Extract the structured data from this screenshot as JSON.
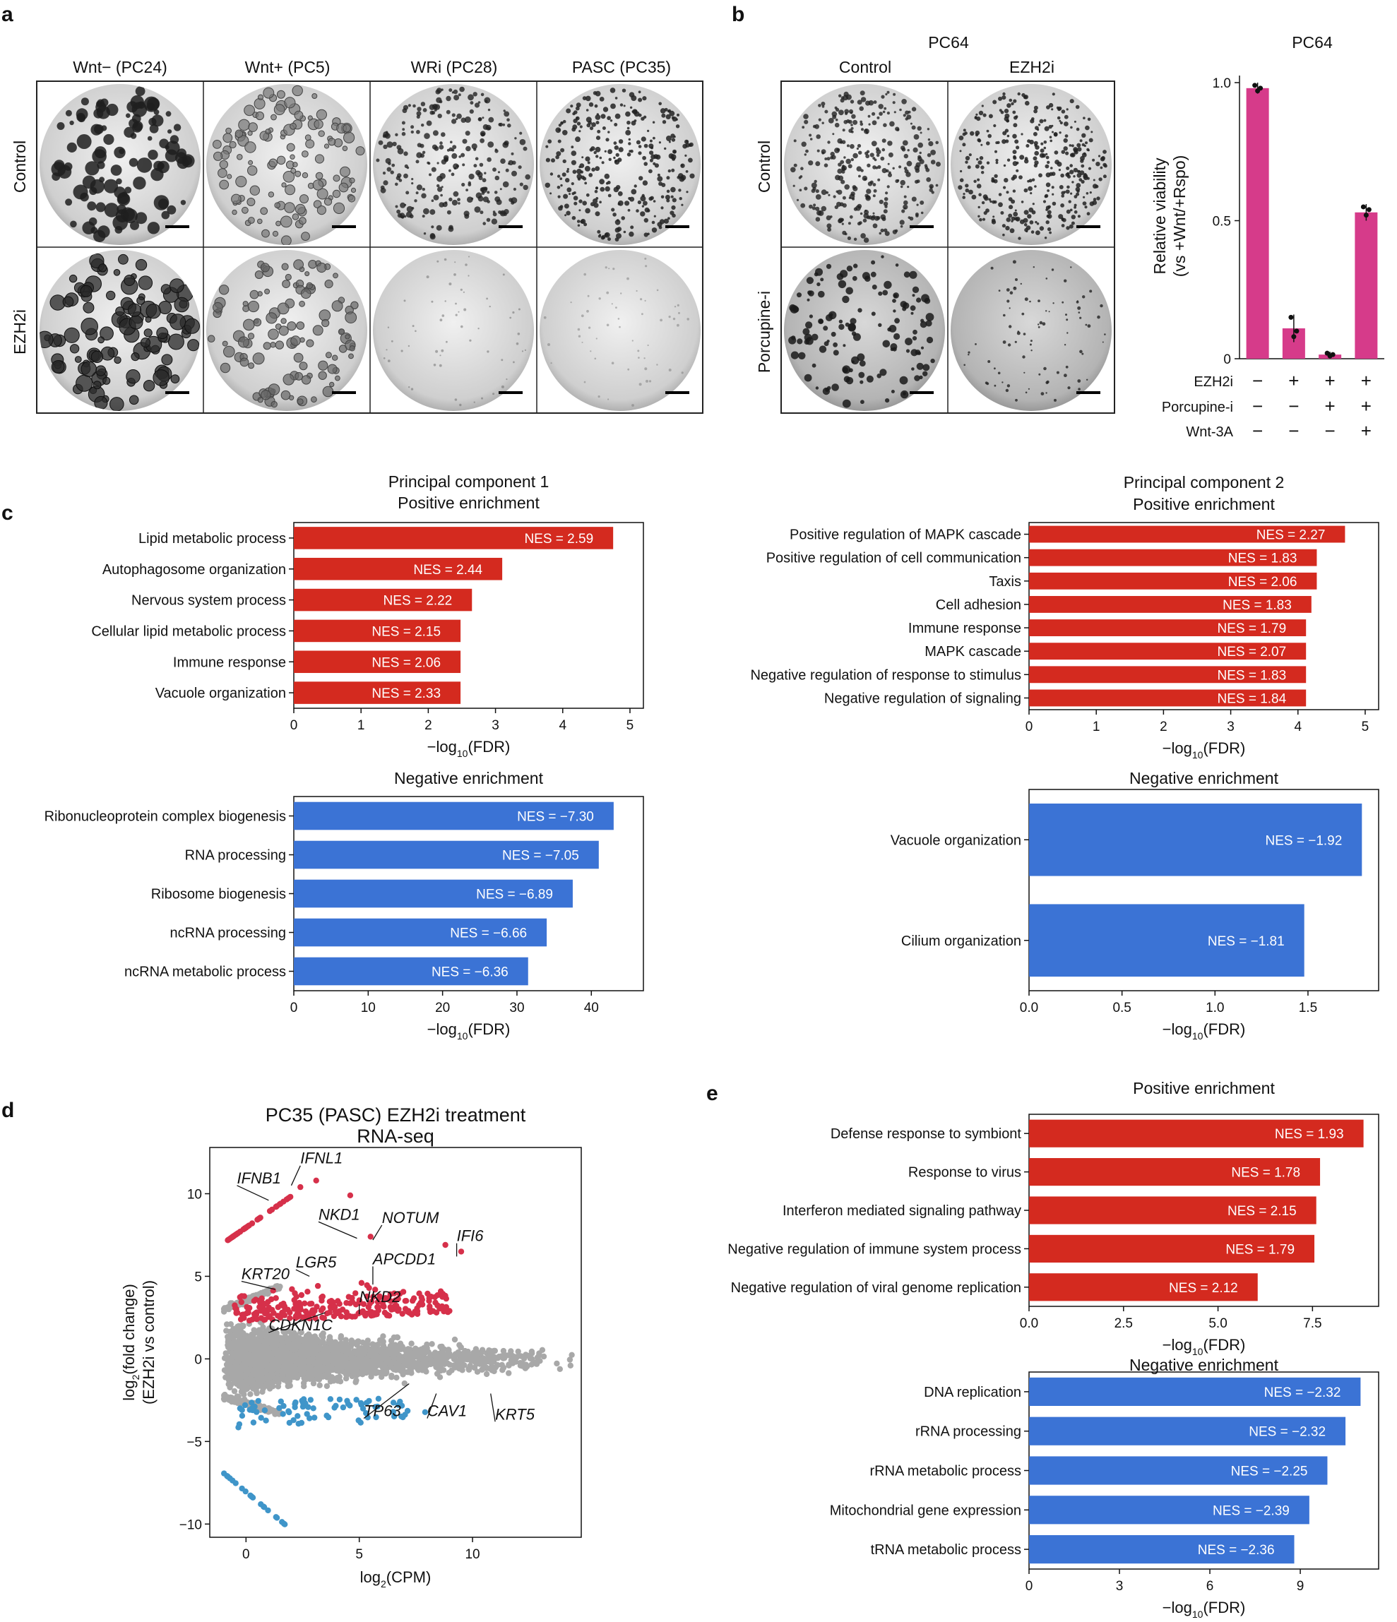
{
  "panel_letters": {
    "a": "a",
    "b": "b",
    "c": "c",
    "d": "d",
    "e": "e"
  },
  "colors": {
    "red": "#d42a1f",
    "blue": "#3b73d5",
    "pink": "#d63b8a",
    "up_dot": "#d6304a",
    "down_dot": "#3f95c9",
    "grey_dot": "#a8a8a8"
  },
  "panel_a": {
    "columns": [
      "Wnt− (PC24)",
      "Wnt+ (PC5)",
      "WRi (PC28)",
      "PASC (PC35)"
    ],
    "rows": [
      "Control",
      "EZH2i"
    ]
  },
  "panel_b": {
    "header": "PC64",
    "columns": [
      "Control",
      "EZH2i"
    ],
    "rows": [
      "Control",
      "Porcupine-i"
    ]
  },
  "chart_data": [
    {
      "id": "b_viability",
      "type": "bar",
      "title": "PC64",
      "ylabel_line1": "Relative viability",
      "ylabel_line2": "(vs +Wnt/+Rspo)",
      "ylim": [
        0,
        1.0
      ],
      "yticks": [
        0,
        0.5,
        1.0
      ],
      "ytick_labels": [
        "0",
        "0.5",
        "1.0"
      ],
      "values": [
        0.98,
        0.11,
        0.015,
        0.53
      ],
      "errors": [
        0.02,
        0.05,
        0.01,
        0.03
      ],
      "points": [
        [
          0.99,
          0.97,
          0.98
        ],
        [
          0.15,
          0.08,
          0.1
        ],
        [
          0.02,
          0.01,
          0.015
        ],
        [
          0.55,
          0.52,
          0.54
        ]
      ],
      "conditions": {
        "labels": [
          "EZH2i",
          "Porcupine-i",
          "Wnt-3A"
        ],
        "symbols": [
          [
            "−",
            "+",
            "+",
            "+"
          ],
          [
            "−",
            "−",
            "+",
            "+"
          ],
          [
            "−",
            "−",
            "−",
            "+"
          ]
        ]
      }
    },
    {
      "id": "c_pc1_pos",
      "type": "bar",
      "orientation": "horizontal",
      "heading_line1": "Principal component 1",
      "heading_line2": "Positive enrichment",
      "categories": [
        "Lipid metabolic process",
        "Autophagosome organization",
        "Nervous system process",
        "Cellular lipid metabolic process",
        "Immune response",
        "Vacuole organization"
      ],
      "values": [
        4.75,
        3.1,
        2.65,
        2.48,
        2.48,
        2.48
      ],
      "nes": [
        "NES =  2.59",
        "NES =  2.44",
        "NES =  2.22",
        "NES =  2.15",
        "NES =  2.06",
        "NES =  2.33"
      ],
      "xlim": [
        0,
        5.2
      ],
      "xticks": [
        0,
        1,
        2,
        3,
        4,
        5
      ],
      "xlabel_main": "−log",
      "xlabel_sub": "10",
      "xlabel_tail": "(FDR)"
    },
    {
      "id": "c_pc2_pos",
      "type": "bar",
      "orientation": "horizontal",
      "heading_line1": "Principal component 2",
      "heading_line2": "Positive enrichment",
      "categories": [
        "Positive regulation of MAPK cascade",
        "Positive regulation of cell communication",
        "Taxis",
        "Cell adhesion",
        "Immune response",
        "MAPK cascade",
        "Negative regulation of response to stimulus",
        "Negative regulation of signaling"
      ],
      "values": [
        4.7,
        4.28,
        4.28,
        4.2,
        4.12,
        4.12,
        4.12,
        4.12
      ],
      "nes": [
        "NES =  2.27",
        "NES =  1.83",
        "NES =  2.06",
        "NES =  1.83",
        "NES =  1.79",
        "NES =  2.07",
        "NES =  1.83",
        "NES =  1.84"
      ],
      "xlim": [
        0,
        5.2
      ],
      "xticks": [
        0,
        1,
        2,
        3,
        4,
        5
      ],
      "xlabel_main": "−log",
      "xlabel_sub": "10",
      "xlabel_tail": "(FDR)"
    },
    {
      "id": "c_pc1_neg",
      "type": "bar",
      "orientation": "horizontal",
      "heading_line1": "Negative enrichment",
      "categories": [
        "Ribonucleoprotein complex biogenesis",
        "RNA processing",
        "Ribosome biogenesis",
        "ncRNA processing",
        "ncRNA metabolic process"
      ],
      "values": [
        43,
        41,
        37.5,
        34,
        31.5
      ],
      "nes": [
        "NES = −7.30",
        "NES = −7.05",
        "NES = −6.89",
        "NES = −6.66",
        "NES = −6.36"
      ],
      "xlim": [
        0,
        47
      ],
      "xticks": [
        0,
        10,
        20,
        30,
        40
      ],
      "xlabel_main": "−log",
      "xlabel_sub": "10",
      "xlabel_tail": "(FDR)"
    },
    {
      "id": "c_pc2_neg",
      "type": "bar",
      "orientation": "horizontal",
      "heading_line1": "Negative enrichment",
      "categories": [
        "Vacuole organization",
        "Cilium organization"
      ],
      "values": [
        1.79,
        1.48
      ],
      "nes": [
        "NES = −1.92",
        "NES = −1.81"
      ],
      "xlim": [
        0,
        1.88
      ],
      "xticks": [
        0.0,
        0.5,
        1.0,
        1.5
      ],
      "xtick_labels": [
        "0.0",
        "0.5",
        "1.0",
        "1.5"
      ],
      "xlabel_main": "−log",
      "xlabel_sub": "10",
      "xlabel_tail": "(FDR)"
    },
    {
      "id": "d_ma",
      "type": "scatter",
      "title_line1": "PC35 (PASC) EZH2i treatment",
      "title_line2": "RNA-seq",
      "xlabel_main": "log",
      "xlabel_sub": "2",
      "xlabel_tail": "(CPM)",
      "ylabel_line1_main": "log",
      "ylabel_line1_sub": "2",
      "ylabel_line1_tail": "(fold change)",
      "ylabel_line2": "(EZH2i vs control)",
      "xlim": [
        -1.6,
        14.8
      ],
      "ylim": [
        -10.8,
        12.8
      ],
      "xticks": [
        0,
        5,
        10
      ],
      "yticks": [
        -10,
        -5,
        0,
        5,
        10
      ],
      "ytick_labels": [
        "−10",
        "−5",
        "0",
        "5",
        "10"
      ],
      "genes": [
        {
          "name": "IFNL1",
          "x": 2.0,
          "y": 10.5,
          "lx": 2.4,
          "ly": 11.7
        },
        {
          "name": "IFNB1",
          "x": 1.0,
          "y": 9.6,
          "lx": -0.4,
          "ly": 10.5
        },
        {
          "name": "NKD1",
          "x": 4.9,
          "y": 7.3,
          "lx": 3.2,
          "ly": 8.3
        },
        {
          "name": "NOTUM",
          "x": 5.6,
          "y": 7.2,
          "lx": 6.0,
          "ly": 8.1
        },
        {
          "name": "IFI6",
          "x": 9.3,
          "y": 6.2,
          "lx": 9.3,
          "ly": 7.0
        },
        {
          "name": "LGR5",
          "x": 2.8,
          "y": 5.0,
          "lx": 2.2,
          "ly": 5.4
        },
        {
          "name": "APCDD1",
          "x": 5.6,
          "y": 4.5,
          "lx": 5.6,
          "ly": 5.6
        },
        {
          "name": "KRT20",
          "x": 1.3,
          "y": 4.2,
          "lx": -0.2,
          "ly": 4.7
        },
        {
          "name": "NKD2",
          "x": 5.0,
          "y": 2.7,
          "lx": 5.0,
          "ly": 3.3
        },
        {
          "name": "CDKN1C",
          "x": 3.5,
          "y": 2.8,
          "lx": 1.0,
          "ly": 1.6
        },
        {
          "name": "TP63",
          "x": 7.2,
          "y": -1.5,
          "lx": 5.2,
          "ly": -3.6
        },
        {
          "name": "CAV1",
          "x": 8.4,
          "y": -2.1,
          "lx": 8.0,
          "ly": -3.6
        },
        {
          "name": "KRT5",
          "x": 10.8,
          "y": -2.1,
          "lx": 11.0,
          "ly": -3.8
        }
      ]
    },
    {
      "id": "e_pos",
      "type": "bar",
      "orientation": "horizontal",
      "heading_line1": "Positive enrichment",
      "categories": [
        "Defense response to symbiont",
        "Response to virus",
        "Interferon mediated signaling pathway",
        "Negative regulation of immune system process",
        "Negative regulation of viral genome replication"
      ],
      "values": [
        8.85,
        7.7,
        7.6,
        7.55,
        6.05
      ],
      "nes": [
        "NES =  1.93",
        "NES =  1.78",
        "NES =  2.15",
        "NES =  1.79",
        "NES =  2.12"
      ],
      "xlim": [
        0,
        9.25
      ],
      "xticks": [
        0.0,
        2.5,
        5.0,
        7.5
      ],
      "xtick_labels": [
        "0.0",
        "2.5",
        "5.0",
        "7.5"
      ],
      "xlabel_main": "−log",
      "xlabel_sub": "10",
      "xlabel_tail": "(FDR)"
    },
    {
      "id": "e_neg",
      "type": "bar",
      "orientation": "horizontal",
      "heading_line1": "Negative enrichment",
      "categories": [
        "DNA replication",
        "rRNA processing",
        "rRNA metabolic process",
        "Mitochondrial gene expression",
        "tRNA metabolic process"
      ],
      "values": [
        11.0,
        10.5,
        9.9,
        9.3,
        8.8
      ],
      "nes": [
        "NES = −2.32",
        "NES = −2.32",
        "NES = −2.25",
        "NES = −2.39",
        "NES = −2.36"
      ],
      "xlim": [
        0,
        11.6
      ],
      "xticks": [
        0,
        3,
        6,
        9
      ],
      "xlabel_main": "−log",
      "xlabel_sub": "10",
      "xlabel_tail": "(FDR)"
    }
  ]
}
